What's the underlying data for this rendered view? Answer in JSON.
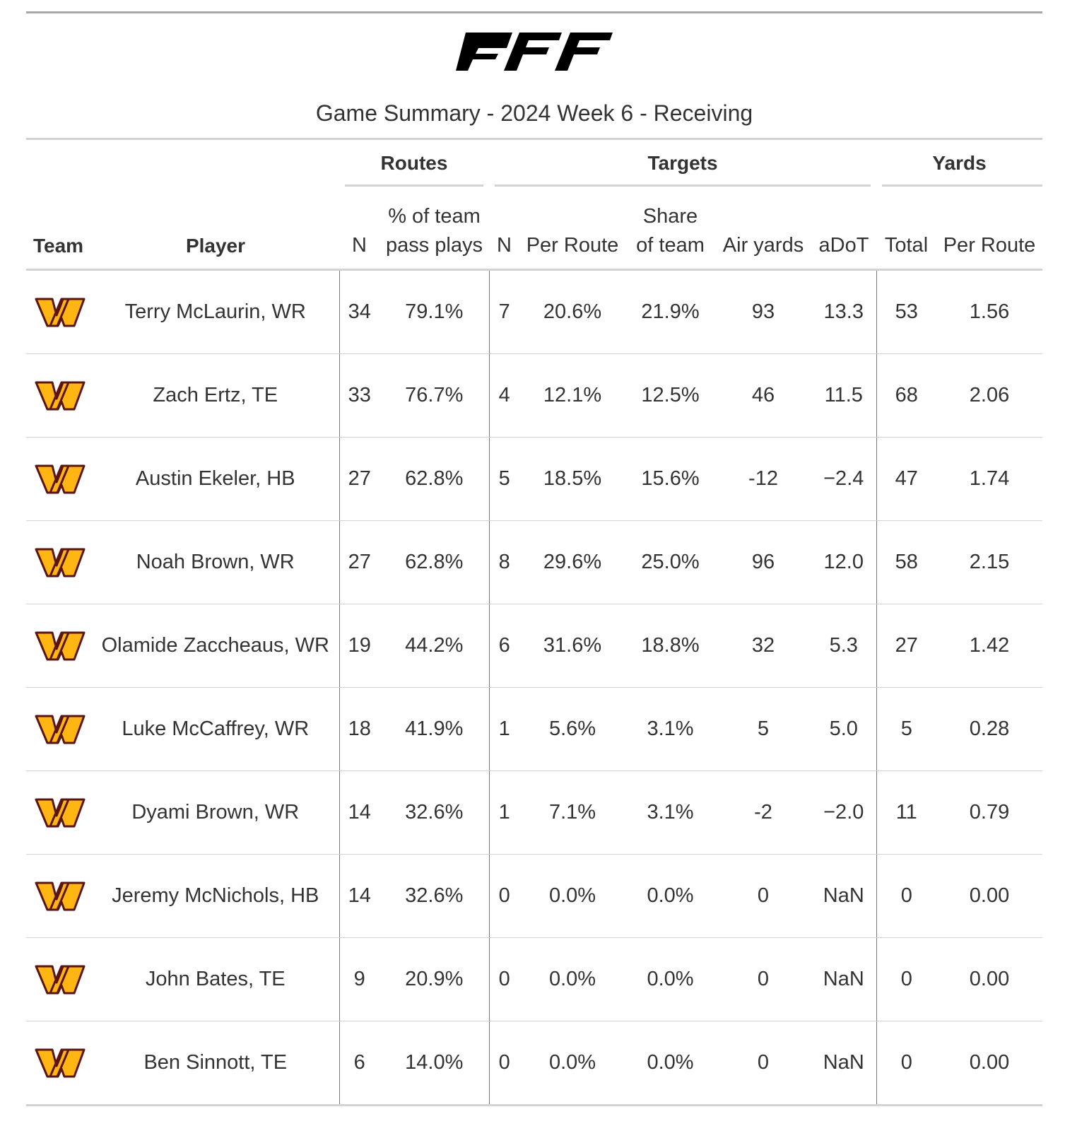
{
  "logo_text": "PFF",
  "title": "Game Summary - 2024 Week 6 - Receiving",
  "spanners": {
    "routes": "Routes",
    "targets": "Targets",
    "yards": "Yards"
  },
  "columns": {
    "team": "Team",
    "player": "Player",
    "routes_n": "N",
    "routes_pct_1": "% of team",
    "routes_pct_2": "pass plays",
    "targets_n": "N",
    "targets_per_route": "Per Route",
    "targets_share_1": "Share",
    "targets_share_2": "of team",
    "air_yards": "Air yards",
    "adot": "aDoT",
    "yards_total": "Total",
    "yards_per_route": "Per Route"
  },
  "colors": {
    "gold": "#FFB612",
    "maroon": "#5A1414"
  },
  "rows": [
    {
      "team": "washington-commanders-logo",
      "player": "Terry McLaurin, WR",
      "routes_n": "34",
      "routes_pct": "79.1%",
      "targets_n": "7",
      "targets_per_route": "20.6%",
      "share": "21.9%",
      "air_yards": "93",
      "adot": "13.3",
      "yards_total": "53",
      "yards_per_route": "1.56"
    },
    {
      "team": "washington-commanders-logo",
      "player": "Zach Ertz, TE",
      "routes_n": "33",
      "routes_pct": "76.7%",
      "targets_n": "4",
      "targets_per_route": "12.1%",
      "share": "12.5%",
      "air_yards": "46",
      "adot": "11.5",
      "yards_total": "68",
      "yards_per_route": "2.06"
    },
    {
      "team": "washington-commanders-logo",
      "player": "Austin Ekeler, HB",
      "routes_n": "27",
      "routes_pct": "62.8%",
      "targets_n": "5",
      "targets_per_route": "18.5%",
      "share": "15.6%",
      "air_yards": "-12",
      "adot": "−2.4",
      "yards_total": "47",
      "yards_per_route": "1.74"
    },
    {
      "team": "washington-commanders-logo",
      "player": "Noah Brown, WR",
      "routes_n": "27",
      "routes_pct": "62.8%",
      "targets_n": "8",
      "targets_per_route": "29.6%",
      "share": "25.0%",
      "air_yards": "96",
      "adot": "12.0",
      "yards_total": "58",
      "yards_per_route": "2.15"
    },
    {
      "team": "washington-commanders-logo",
      "player": "Olamide Zaccheaus, WR",
      "routes_n": "19",
      "routes_pct": "44.2%",
      "targets_n": "6",
      "targets_per_route": "31.6%",
      "share": "18.8%",
      "air_yards": "32",
      "adot": "5.3",
      "yards_total": "27",
      "yards_per_route": "1.42"
    },
    {
      "team": "washington-commanders-logo",
      "player": "Luke McCaffrey, WR",
      "routes_n": "18",
      "routes_pct": "41.9%",
      "targets_n": "1",
      "targets_per_route": "5.6%",
      "share": "3.1%",
      "air_yards": "5",
      "adot": "5.0",
      "yards_total": "5",
      "yards_per_route": "0.28"
    },
    {
      "team": "washington-commanders-logo",
      "player": "Dyami Brown, WR",
      "routes_n": "14",
      "routes_pct": "32.6%",
      "targets_n": "1",
      "targets_per_route": "7.1%",
      "share": "3.1%",
      "air_yards": "-2",
      "adot": "−2.0",
      "yards_total": "11",
      "yards_per_route": "0.79"
    },
    {
      "team": "washington-commanders-logo",
      "player": "Jeremy McNichols, HB",
      "routes_n": "14",
      "routes_pct": "32.6%",
      "targets_n": "0",
      "targets_per_route": "0.0%",
      "share": "0.0%",
      "air_yards": "0",
      "adot": "NaN",
      "yards_total": "0",
      "yards_per_route": "0.00"
    },
    {
      "team": "washington-commanders-logo",
      "player": "John Bates, TE",
      "routes_n": "9",
      "routes_pct": "20.9%",
      "targets_n": "0",
      "targets_per_route": "0.0%",
      "share": "0.0%",
      "air_yards": "0",
      "adot": "NaN",
      "yards_total": "0",
      "yards_per_route": "0.00"
    },
    {
      "team": "washington-commanders-logo",
      "player": "Ben Sinnott, TE",
      "routes_n": "6",
      "routes_pct": "14.0%",
      "targets_n": "0",
      "targets_per_route": "0.0%",
      "share": "0.0%",
      "air_yards": "0",
      "adot": "NaN",
      "yards_total": "0",
      "yards_per_route": "0.00"
    }
  ]
}
